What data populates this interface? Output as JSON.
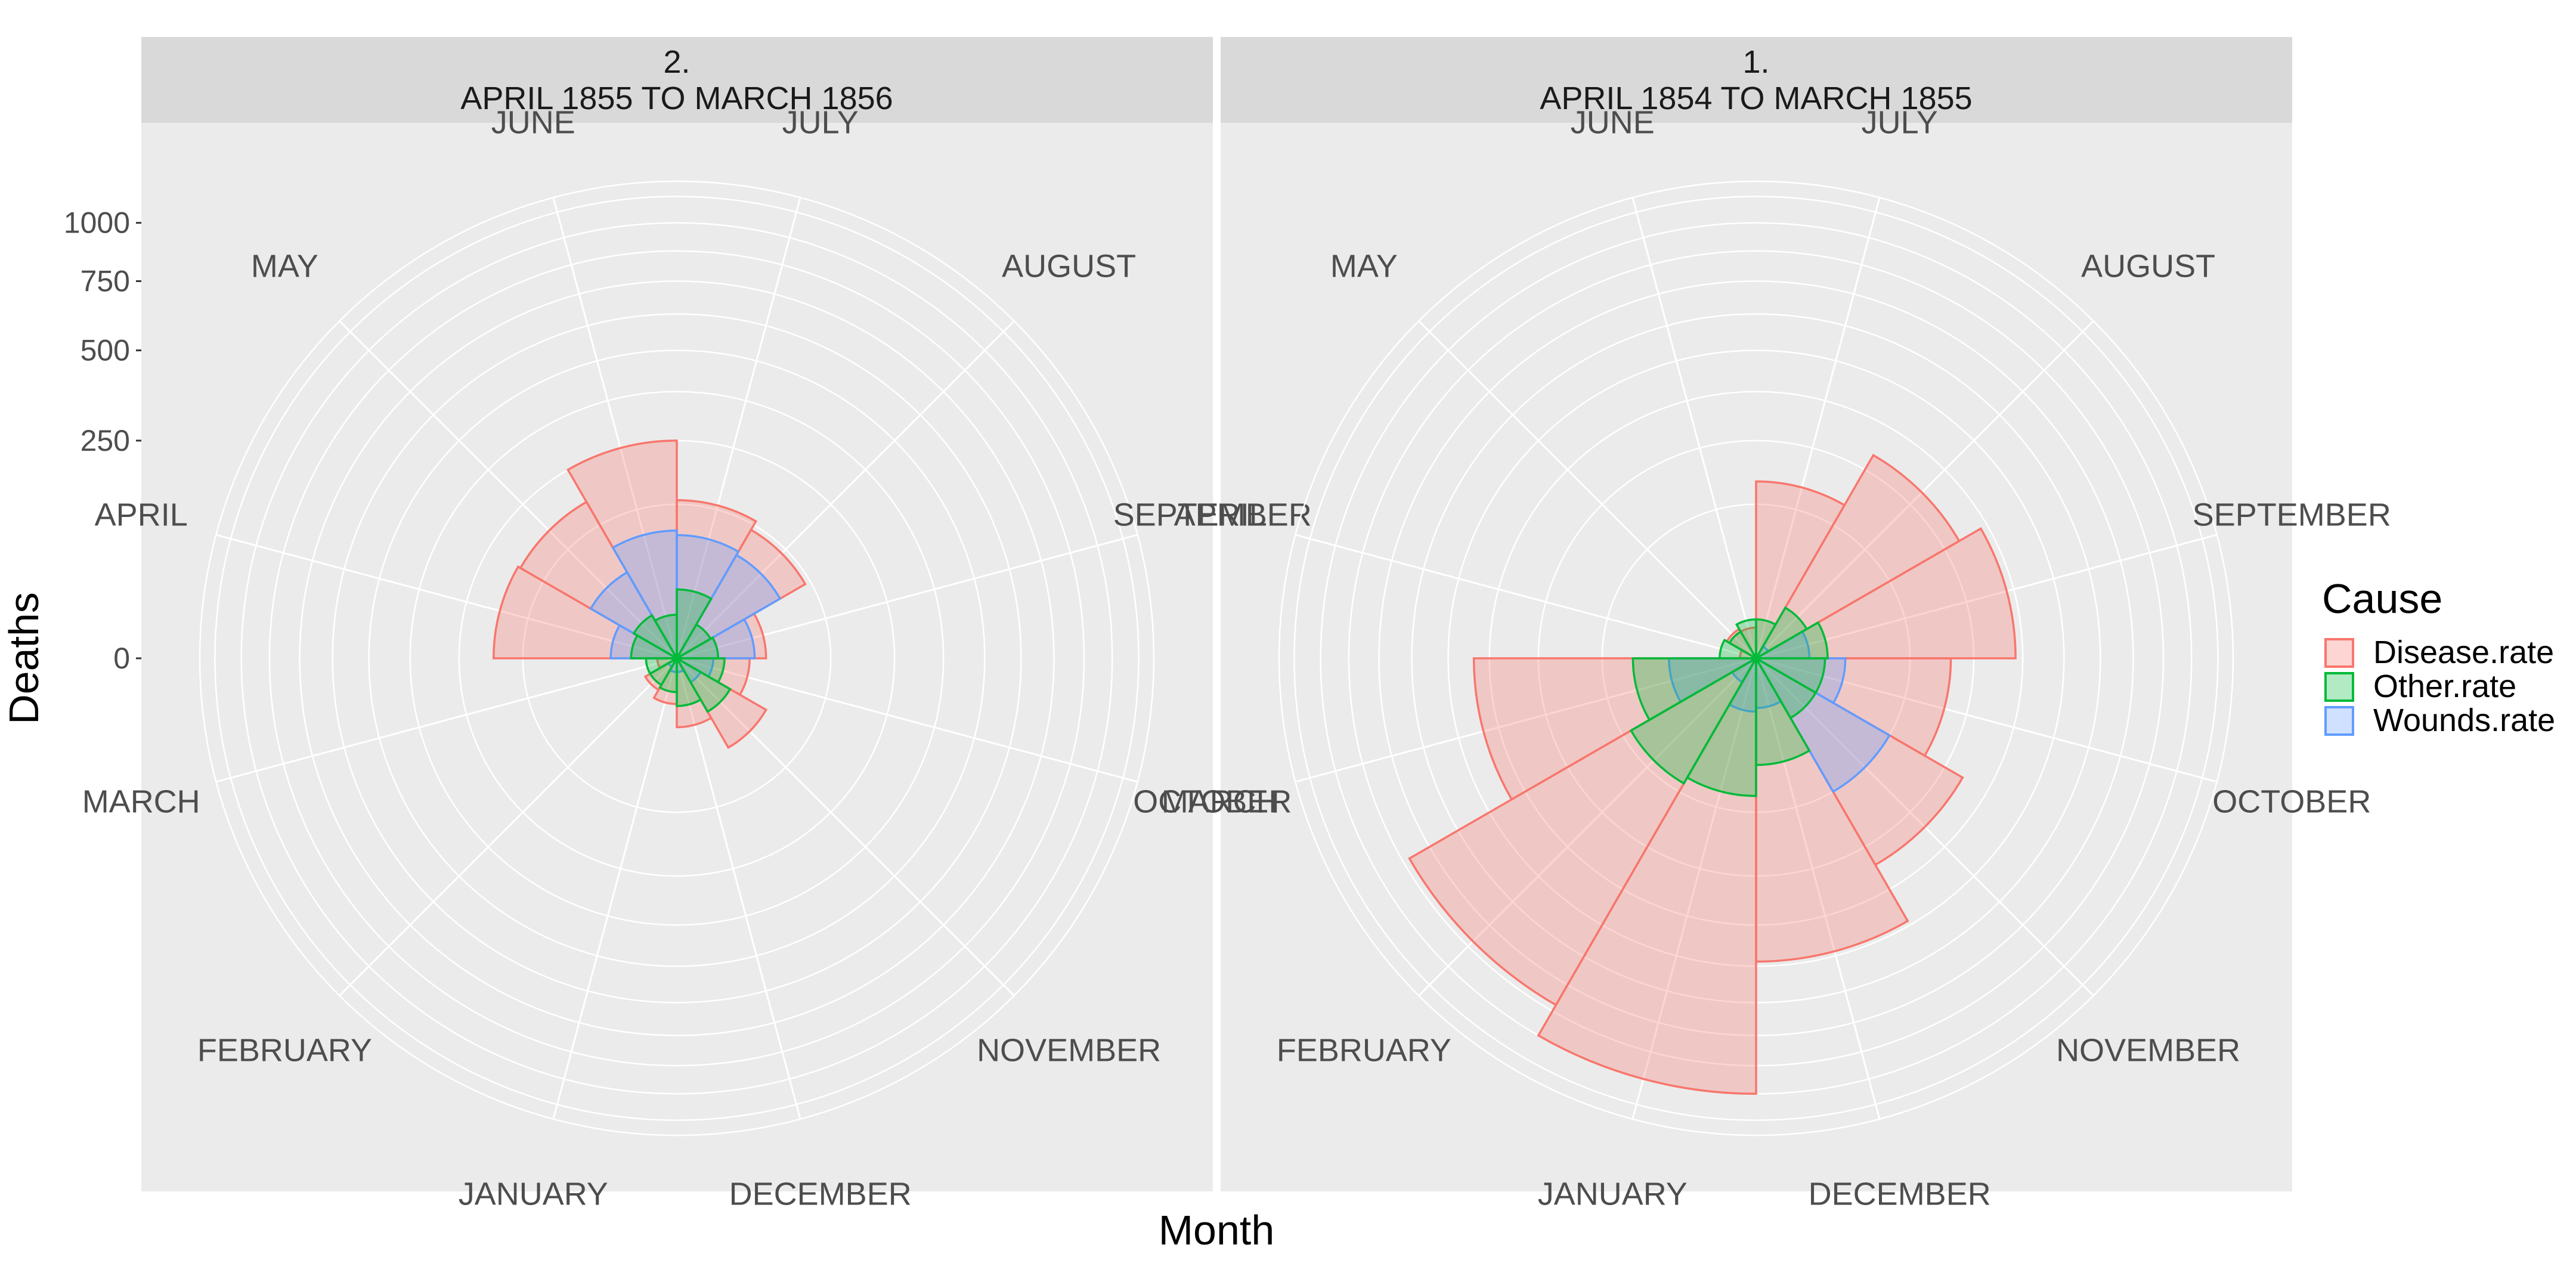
{
  "chart_data": {
    "type": "polar-bar",
    "xlabel": "Month",
    "ylabel": "Deaths",
    "y_scale": "sqrt",
    "y_ticks": [
      0,
      250,
      500,
      750,
      1000
    ],
    "y_tick_labels": [
      "0",
      "250",
      "500",
      "750",
      "1000"
    ],
    "y_max": 1200,
    "months": [
      "JULY",
      "AUGUST",
      "SEPTEMBER",
      "OCTOBER",
      "NOVEMBER",
      "DECEMBER",
      "JANUARY",
      "FEBRUARY",
      "MARCH",
      "APRIL",
      "MAY",
      "JUNE"
    ],
    "legend": {
      "title": "Cause",
      "placement": "right",
      "entries": [
        {
          "name": "Disease.rate",
          "stroke": "#F8766D",
          "fill": "#F8766D"
        },
        {
          "name": "Other.rate",
          "stroke": "#00BA38",
          "fill": "#00BA38"
        },
        {
          "name": "Wounds.rate",
          "stroke": "#619CFF",
          "fill": "#619CFF"
        }
      ]
    },
    "panels": [
      {
        "strip_line1": "2.",
        "strip_line2": "APRIL 1855 TO MARCH 1856",
        "series": [
          {
            "name": "Disease.rate",
            "values": [
              132,
              116,
              42,
              28,
              56,
              25,
              11,
              7,
              2,
              177,
              172,
              250
            ]
          },
          {
            "name": "Wounds.rate",
            "values": [
              80,
              75,
              32,
              7,
              4,
              1,
              1,
              0.5,
              0,
              23,
              52,
              86
            ]
          },
          {
            "name": "Other.rate",
            "values": [
              25,
              8,
              9,
              12,
              20,
              12,
              6,
              5,
              5,
              11,
              13,
              10
            ]
          }
        ]
      },
      {
        "strip_line1": "1.",
        "strip_line2": "APRIL 1854 TO MARCH 1855",
        "series": [
          {
            "name": "Disease.rate",
            "values": [
              165,
              290,
              355,
              200,
              300,
              485,
              1000,
              845,
              420,
              1.4,
              6,
              5
            ]
          },
          {
            "name": "Wounds.rate",
            "values": [
              0,
              1,
              15,
              42,
              125,
              13,
              15,
              4,
              40,
              0,
              0,
              0
            ]
          },
          {
            "name": "Other.rate",
            "values": [
              8,
              18,
              27,
              25,
              25,
              60,
              100,
              110,
              80,
              7,
              5,
              8
            ]
          }
        ]
      }
    ]
  }
}
